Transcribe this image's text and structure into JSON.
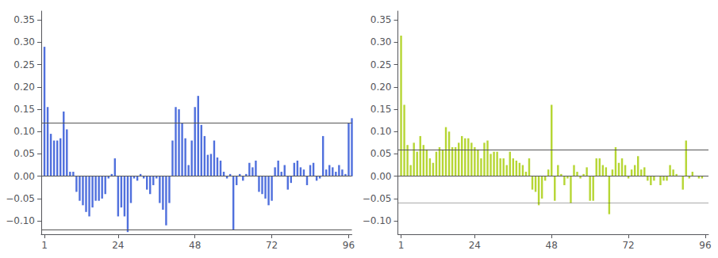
{
  "chart_data": [
    {
      "type": "bar",
      "x": [
        1,
        2,
        3,
        4,
        5,
        6,
        7,
        8,
        9,
        10,
        11,
        12,
        13,
        14,
        15,
        16,
        17,
        18,
        19,
        20,
        21,
        22,
        23,
        24,
        25,
        26,
        27,
        28,
        29,
        30,
        31,
        32,
        33,
        34,
        35,
        36,
        37,
        38,
        39,
        40,
        41,
        42,
        43,
        44,
        45,
        46,
        47,
        48,
        49,
        50,
        51,
        52,
        53,
        54,
        55,
        56,
        57,
        58,
        59,
        60,
        61,
        62,
        63,
        64,
        65,
        66,
        67,
        68,
        69,
        70,
        71,
        72,
        73,
        74,
        75,
        76,
        77,
        78,
        79,
        80,
        81,
        82,
        83,
        84,
        85,
        86,
        87,
        88,
        89,
        90,
        91,
        92,
        93,
        94,
        95,
        96,
        97
      ],
      "values": [
        0.29,
        0.155,
        0.095,
        0.08,
        0.08,
        0.085,
        0.145,
        0.105,
        0.01,
        0.01,
        -0.035,
        -0.055,
        -0.065,
        -0.08,
        -0.09,
        -0.07,
        -0.055,
        -0.055,
        -0.05,
        -0.04,
        -0.005,
        0.005,
        0.04,
        -0.09,
        -0.07,
        -0.09,
        -0.125,
        -0.06,
        -0.005,
        -0.01,
        0.005,
        -0.005,
        -0.03,
        -0.04,
        -0.02,
        -0.005,
        -0.06,
        -0.075,
        -0.11,
        -0.06,
        0.08,
        0.155,
        0.15,
        0.12,
        0.085,
        0.025,
        0.08,
        0.155,
        0.18,
        0.115,
        0.09,
        0.048,
        0.05,
        0.08,
        0.042,
        0.035,
        0.01,
        -0.005,
        0.005,
        -0.12,
        -0.02,
        0.005,
        -0.01,
        0.005,
        0.03,
        0.02,
        0.035,
        -0.035,
        -0.04,
        -0.05,
        -0.065,
        -0.055,
        0.02,
        0.035,
        0.01,
        0.025,
        -0.03,
        -0.015,
        0.03,
        0.035,
        0.02,
        0.015,
        -0.02,
        0.025,
        0.03,
        -0.01,
        -0.005,
        0.09,
        0.015,
        0.025,
        0.02,
        0.01,
        0.025,
        0.015,
        0.005,
        0.12,
        0.13
      ],
      "reference_lines": [
        {
          "value": 0.115,
          "line_style": "solid"
        },
        {
          "value": -0.115,
          "line_style": "solid"
        },
        {
          "value": 0,
          "line_style": "solid"
        }
      ],
      "xlim": [
        0,
        97
      ],
      "xticks": [
        1,
        24,
        48,
        72,
        96
      ],
      "ylim": [
        -0.13,
        0.37
      ],
      "yticks": [
        {
          "value": -0.1,
          "label": "−0.10"
        },
        {
          "value": -0.05,
          "label": "−0.05"
        },
        {
          "value": 0.0,
          "label": "0.00"
        },
        {
          "value": 0.05,
          "label": "0.05"
        },
        {
          "value": 0.1,
          "label": "0.10"
        },
        {
          "value": 0.15,
          "label": "0.15"
        },
        {
          "value": 0.2,
          "label": "0.20"
        },
        {
          "value": 0.25,
          "label": "0.25"
        },
        {
          "value": 0.3,
          "label": "0.30"
        },
        {
          "value": 0.35,
          "label": "0.35"
        }
      ],
      "grid": false
    },
    {
      "type": "bar",
      "x": [
        1,
        2,
        3,
        4,
        5,
        6,
        7,
        8,
        9,
        10,
        11,
        12,
        13,
        14,
        15,
        16,
        17,
        18,
        19,
        20,
        21,
        22,
        23,
        24,
        25,
        26,
        27,
        28,
        29,
        30,
        31,
        32,
        33,
        34,
        35,
        36,
        37,
        38,
        39,
        40,
        41,
        42,
        43,
        44,
        45,
        46,
        47,
        48,
        49,
        50,
        51,
        52,
        53,
        54,
        55,
        56,
        57,
        58,
        59,
        60,
        61,
        62,
        63,
        64,
        65,
        66,
        67,
        68,
        69,
        70,
        71,
        72,
        73,
        74,
        75,
        76,
        77,
        78,
        79,
        80,
        81,
        82,
        83,
        84,
        85,
        86,
        87,
        88,
        89,
        90,
        91,
        92,
        93,
        94,
        95,
        96
      ],
      "values": [
        0.315,
        0.16,
        0.07,
        0.025,
        0.075,
        0.055,
        0.09,
        0.07,
        0.06,
        0.04,
        0.03,
        0.055,
        0.065,
        0.06,
        0.11,
        0.1,
        0.065,
        0.065,
        0.075,
        0.09,
        0.085,
        0.085,
        0.075,
        0.065,
        0.06,
        0.04,
        0.075,
        0.08,
        0.05,
        0.055,
        0.055,
        0.04,
        0.04,
        0.025,
        0.055,
        0.04,
        0.035,
        0.03,
        0.025,
        0.01,
        0.04,
        -0.03,
        -0.035,
        -0.065,
        -0.05,
        -0.01,
        0.015,
        0.16,
        -0.055,
        0.025,
        0.005,
        -0.02,
        -0.005,
        -0.06,
        0.025,
        0.01,
        -0.005,
        0.005,
        0.02,
        -0.055,
        -0.055,
        0.04,
        0.04,
        0.025,
        0.02,
        -0.085,
        0.015,
        0.065,
        0.03,
        0.04,
        0.025,
        -0.005,
        0.015,
        0.025,
        0.045,
        0.015,
        0.02,
        -0.01,
        -0.02,
        -0.01,
        0.0,
        -0.02,
        -0.01,
        -0.01,
        0.025,
        0.015,
        0.005,
        0.0,
        -0.03,
        0.08,
        -0.005,
        0.01,
        0.0,
        -0.005,
        -0.005,
        0.0
      ],
      "reference_lines": [
        {
          "value": 0.057,
          "line_style": "solid"
        },
        {
          "value": -0.063,
          "line_style": "dotted"
        },
        {
          "value": 0,
          "line_style": "solid"
        }
      ],
      "xlim": [
        0,
        97
      ],
      "xticks": [
        1,
        24,
        48,
        72,
        96
      ],
      "ylim": [
        -0.13,
        0.37
      ],
      "yticks": [
        {
          "value": -0.1,
          "label": "−0.10"
        },
        {
          "value": -0.05,
          "label": "−0.05"
        },
        {
          "value": 0.0,
          "label": "0.00"
        },
        {
          "value": 0.05,
          "label": "0.05"
        },
        {
          "value": 0.1,
          "label": "0.10"
        },
        {
          "value": 0.15,
          "label": "0.15"
        },
        {
          "value": 0.2,
          "label": "0.20"
        },
        {
          "value": 0.25,
          "label": "0.25"
        },
        {
          "value": 0.3,
          "label": "0.30"
        },
        {
          "value": 0.35,
          "label": "0.35"
        }
      ],
      "grid": false
    }
  ]
}
